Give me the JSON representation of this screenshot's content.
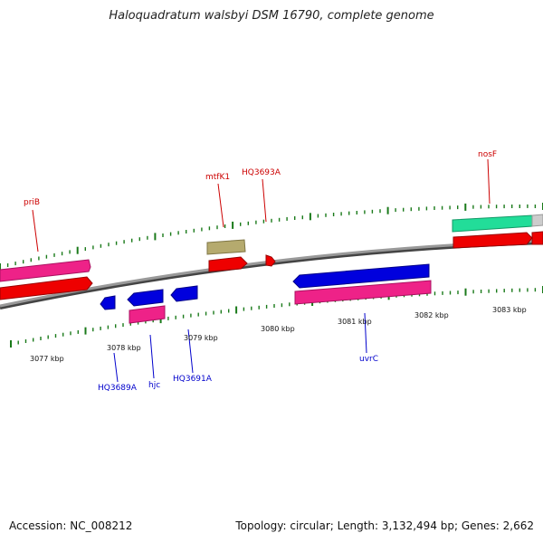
{
  "title": "Haloquadratum walsbyi DSM 16790, complete genome",
  "footer": {
    "accession": "Accession: NC_008212",
    "summary": "Topology: circular; Length: 3,132,494 bp; Genes: 2,662"
  },
  "scale": {
    "inner_labels": [
      "3077 kbp",
      "3078 kbp",
      "3079 kbp",
      "3080 kbp",
      "3081 kbp",
      "3082 kbp",
      "3083 kbp"
    ]
  },
  "genes": {
    "top": [
      "priB",
      "mtfK1",
      "HQ3693A",
      "nosF"
    ],
    "bottom": [
      "HQ3689A",
      "hjc",
      "HQ3691A",
      "uvrC"
    ]
  },
  "colors": {
    "label_top": "#cc0000",
    "label_bottom": "#0000cc",
    "tick": "#1a7a1a",
    "red": "#ee0000",
    "pink": "#ee2288",
    "blue": "#0000dd",
    "khaki": "#b5aa6e",
    "green": "#22dd99",
    "backbone": "#8c8c8c"
  }
}
